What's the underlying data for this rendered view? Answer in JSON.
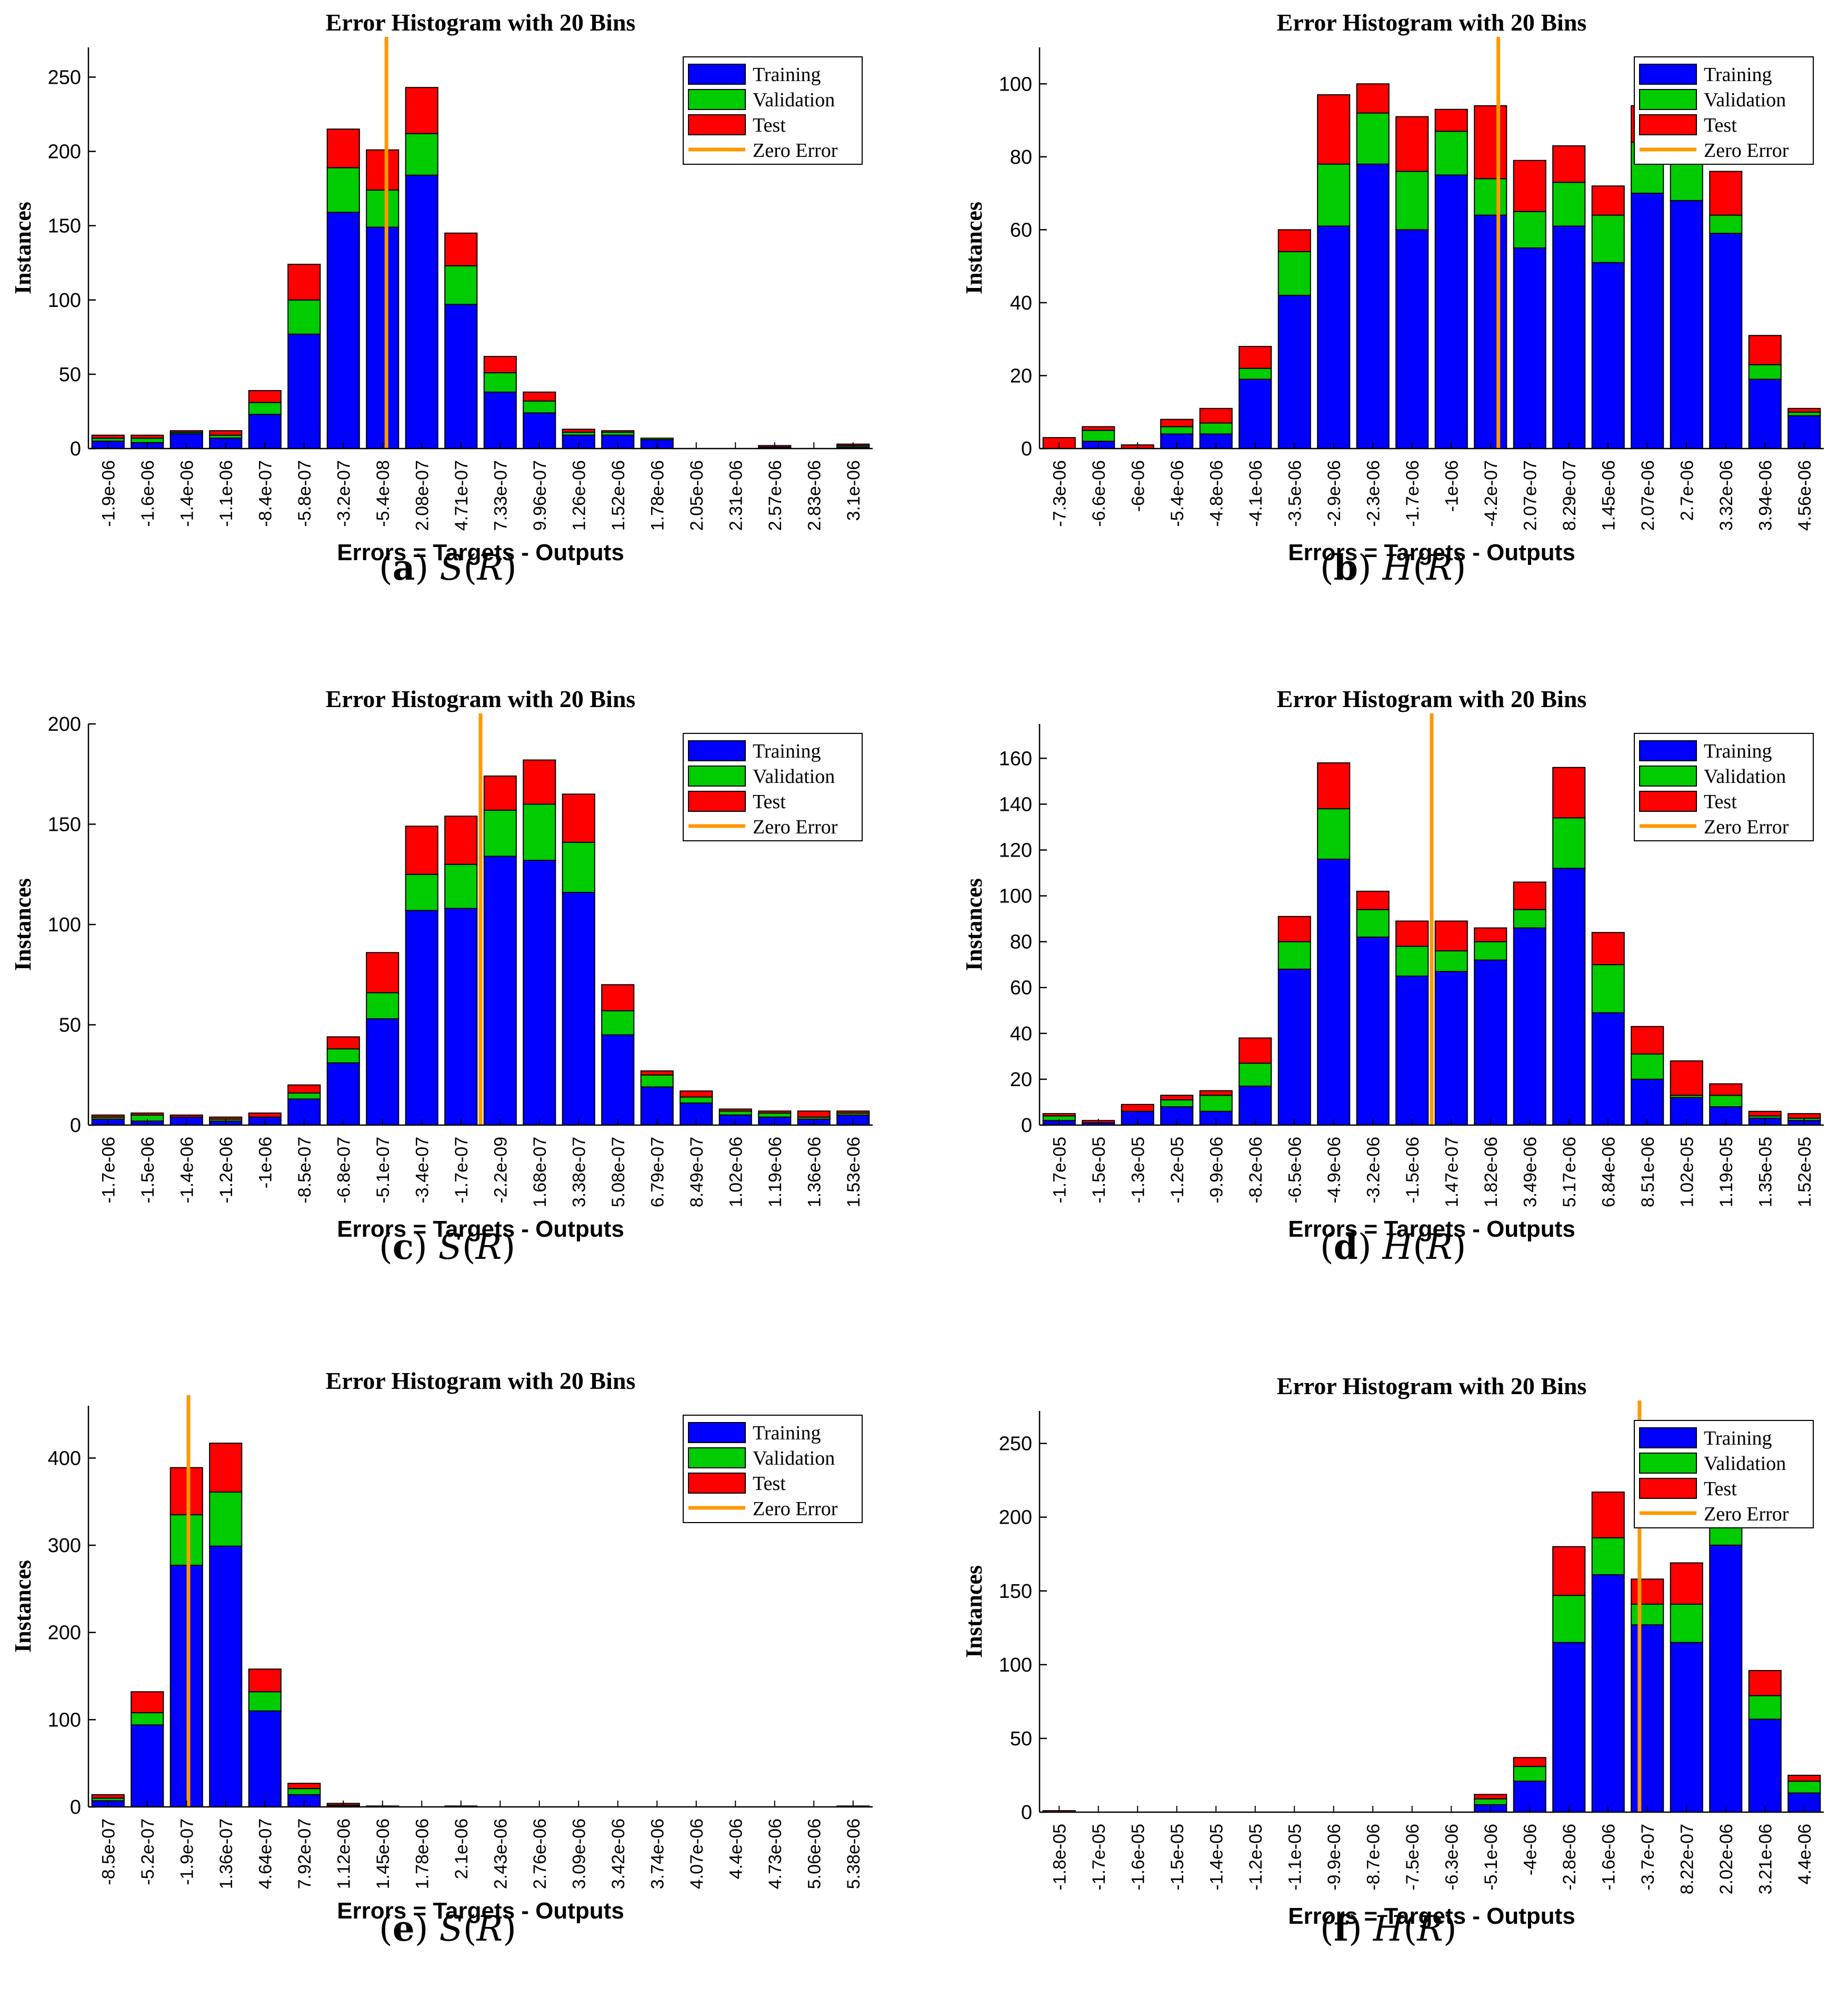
{
  "chart_data": [
    {
      "type": "bar",
      "stacked": true,
      "panel": "a",
      "title": "Error Histogram with 20 Bins",
      "xlabel": "Errors = Targets - Outputs",
      "ylabel": "Instances",
      "caption_letter": "a",
      "caption_func": "S",
      "caption_var": "R",
      "ylim": [
        0,
        270
      ],
      "yticks": [
        0,
        50,
        100,
        150,
        200,
        250
      ],
      "categories": [
        "-1.9e-06",
        "-1.6e-06",
        "-1.4e-06",
        "-1.1e-06",
        "-8.4e-07",
        "-5.8e-07",
        "-3.2e-07",
        "-5.4e-08",
        "2.08e-07",
        "4.71e-07",
        "7.33e-07",
        "9.96e-07",
        "1.26e-06",
        "1.52e-06",
        "1.78e-06",
        "2.05e-06",
        "2.31e-06",
        "2.57e-06",
        "2.83e-06",
        "3.1e-06"
      ],
      "series": [
        {
          "name": "Training",
          "color": "#0000FF",
          "values": [
            5,
            4,
            10,
            7,
            23,
            77,
            159,
            149,
            184,
            97,
            38,
            24,
            9,
            9,
            6,
            0,
            0,
            1,
            0,
            1
          ]
        },
        {
          "name": "Validation",
          "color": "#00CC00",
          "values": [
            2,
            3,
            1,
            2,
            8,
            23,
            30,
            25,
            28,
            26,
            13,
            8,
            2,
            2,
            1,
            0,
            0,
            0,
            0,
            1
          ]
        },
        {
          "name": "Test",
          "color": "#FF0000",
          "values": [
            2,
            2,
            1,
            3,
            8,
            24,
            26,
            27,
            31,
            22,
            11,
            6,
            2,
            1,
            0,
            0,
            0,
            1,
            0,
            1
          ]
        }
      ],
      "zero_error_bin": 7.6,
      "legend": [
        "Training",
        "Validation",
        "Test",
        "Zero Error"
      ],
      "legend_position": "top-right"
    },
    {
      "type": "bar",
      "stacked": true,
      "panel": "b",
      "title": "Error Histogram with 20 Bins",
      "xlabel": "Errors = Targets - Outputs",
      "ylabel": "Instances",
      "caption_letter": "b",
      "caption_func": "H",
      "caption_var": "R",
      "ylim": [
        0,
        110
      ],
      "yticks": [
        0,
        20,
        40,
        60,
        80,
        100
      ],
      "categories": [
        "-7.3e-06",
        "-6.6e-06",
        "-6e-06",
        "-5.4e-06",
        "-4.8e-06",
        "-4.1e-06",
        "-3.5e-06",
        "-2.9e-06",
        "-2.3e-06",
        "-1.7e-06",
        "-1e-06",
        "-4.2e-07",
        "2.07e-07",
        "8.29e-07",
        "1.45e-06",
        "2.07e-06",
        "2.7e-06",
        "3.32e-06",
        "3.94e-06",
        "4.56e-06"
      ],
      "series": [
        {
          "name": "Training",
          "color": "#0000FF",
          "values": [
            0,
            2,
            0,
            4,
            4,
            19,
            42,
            61,
            78,
            60,
            75,
            64,
            55,
            61,
            51,
            70,
            68,
            59,
            19,
            9
          ]
        },
        {
          "name": "Validation",
          "color": "#00CC00",
          "values": [
            0,
            3,
            0,
            2,
            3,
            3,
            12,
            17,
            14,
            16,
            12,
            10,
            10,
            12,
            13,
            14,
            16,
            5,
            4,
            1
          ]
        },
        {
          "name": "Test",
          "color": "#FF0000",
          "values": [
            3,
            1,
            1,
            2,
            4,
            6,
            6,
            19,
            8,
            15,
            6,
            20,
            14,
            10,
            8,
            10,
            10,
            12,
            8,
            1
          ]
        }
      ],
      "zero_error_bin": 11.7,
      "legend": [
        "Training",
        "Validation",
        "Test",
        "Zero Error"
      ],
      "legend_position": "top-right"
    },
    {
      "type": "bar",
      "stacked": true,
      "panel": "c",
      "title": "Error Histogram with 20 Bins",
      "xlabel": "Errors = Targets - Outputs",
      "ylabel": "Instances",
      "caption_letter": "c",
      "caption_func": "S",
      "caption_var": "R",
      "ylim": [
        0,
        200
      ],
      "yticks": [
        0,
        50,
        100,
        150,
        200
      ],
      "categories": [
        "-1.7e-06",
        "-1.5e-06",
        "-1.4e-06",
        "-1.2e-06",
        "-1e-06",
        "-8.5e-07",
        "-6.8e-07",
        "-5.1e-07",
        "-3.4e-07",
        "-1.7e-07",
        "-2.2e-09",
        "1.68e-07",
        "3.38e-07",
        "5.08e-07",
        "6.79e-07",
        "8.49e-07",
        "1.02e-06",
        "1.19e-06",
        "1.36e-06",
        "1.53e-06"
      ],
      "series": [
        {
          "name": "Training",
          "color": "#0000FF",
          "values": [
            3,
            2,
            4,
            2,
            4,
            13,
            31,
            53,
            107,
            108,
            134,
            132,
            116,
            45,
            19,
            11,
            5,
            4,
            3,
            5
          ]
        },
        {
          "name": "Validation",
          "color": "#00CC00",
          "values": [
            1,
            3,
            0,
            1,
            0,
            3,
            7,
            13,
            18,
            22,
            23,
            28,
            25,
            12,
            6,
            3,
            2,
            2,
            1,
            1
          ]
        },
        {
          "name": "Test",
          "color": "#FF0000",
          "values": [
            1,
            1,
            1,
            1,
            2,
            4,
            6,
            20,
            24,
            24,
            17,
            22,
            24,
            13,
            2,
            3,
            1,
            1,
            3,
            1
          ]
        }
      ],
      "zero_error_bin": 10.0,
      "legend": [
        "Training",
        "Validation",
        "Test",
        "Zero Error"
      ],
      "legend_position": "top-right"
    },
    {
      "type": "bar",
      "stacked": true,
      "panel": "d",
      "title": "Error Histogram with 20 Bins",
      "xlabel": "Errors = Targets - Outputs",
      "ylabel": "Instances",
      "caption_letter": "d",
      "caption_func": "H",
      "caption_var": "R",
      "ylim": [
        0,
        175
      ],
      "yticks": [
        0,
        20,
        40,
        60,
        80,
        100,
        120,
        140,
        160
      ],
      "categories": [
        "-1.7e-05",
        "-1.5e-05",
        "-1.3e-05",
        "-1.2e-05",
        "-9.9e-06",
        "-8.2e-06",
        "-6.5e-06",
        "-4.9e-06",
        "-3.2e-06",
        "-1.5e-06",
        "1.47e-07",
        "1.82e-06",
        "3.49e-06",
        "5.17e-06",
        "6.84e-06",
        "8.51e-06",
        "1.02e-05",
        "1.19e-05",
        "1.35e-05",
        "1.52e-05"
      ],
      "series": [
        {
          "name": "Training",
          "color": "#0000FF",
          "values": [
            2,
            1,
            6,
            8,
            6,
            17,
            68,
            116,
            82,
            65,
            67,
            72,
            86,
            112,
            49,
            20,
            12,
            8,
            3,
            2
          ]
        },
        {
          "name": "Validation",
          "color": "#00CC00",
          "values": [
            2,
            0,
            0,
            3,
            7,
            10,
            12,
            22,
            12,
            13,
            9,
            8,
            8,
            22,
            21,
            11,
            1,
            5,
            1,
            1
          ]
        },
        {
          "name": "Test",
          "color": "#FF0000",
          "values": [
            1,
            1,
            3,
            2,
            2,
            11,
            11,
            20,
            8,
            11,
            13,
            6,
            12,
            22,
            14,
            12,
            15,
            5,
            2,
            2
          ]
        }
      ],
      "zero_error_bin": 10.0,
      "legend": [
        "Training",
        "Validation",
        "Test",
        "Zero Error"
      ],
      "legend_position": "top-right"
    },
    {
      "type": "bar",
      "stacked": true,
      "panel": "e",
      "title": "Error Histogram with 20 Bins",
      "xlabel": "Errors = Targets - Outputs",
      "ylabel": "Instances",
      "caption_letter": "e",
      "caption_func": "S",
      "caption_var": "R",
      "ylim": [
        0,
        460
      ],
      "yticks": [
        0,
        100,
        200,
        300,
        400
      ],
      "categories": [
        "-8.5e-07",
        "-5.2e-07",
        "-1.9e-07",
        "1.36e-07",
        "4.64e-07",
        "7.92e-07",
        "1.12e-06",
        "1.45e-06",
        "1.78e-06",
        "2.1e-06",
        "2.43e-06",
        "2.76e-06",
        "3.09e-06",
        "3.42e-06",
        "3.74e-06",
        "4.07e-06",
        "4.4e-06",
        "4.73e-06",
        "5.06e-06",
        "5.38e-06"
      ],
      "series": [
        {
          "name": "Training",
          "color": "#0000FF",
          "values": [
            7,
            94,
            277,
            299,
            110,
            14,
            1,
            0,
            0,
            0,
            0,
            0,
            0,
            0,
            0,
            0,
            0,
            0,
            0,
            0
          ]
        },
        {
          "name": "Validation",
          "color": "#00CC00",
          "values": [
            3,
            14,
            58,
            62,
            22,
            7,
            1,
            0,
            0,
            0,
            0,
            0,
            0,
            0,
            0,
            0,
            0,
            0,
            0,
            0
          ]
        },
        {
          "name": "Test",
          "color": "#FF0000",
          "values": [
            4,
            24,
            54,
            56,
            26,
            6,
            2,
            1,
            0,
            1,
            0,
            0,
            0,
            0,
            0,
            0,
            0,
            0,
            0,
            1
          ]
        }
      ],
      "zero_error_bin": 2.55,
      "legend": [
        "Training",
        "Validation",
        "Test",
        "Zero Error"
      ],
      "legend_position": "top-right"
    },
    {
      "type": "bar",
      "stacked": true,
      "panel": "f",
      "title": "Error Histogram with 20 Bins",
      "xlabel": "Errors = Targets - Outputs",
      "ylabel": "Instances",
      "caption_letter": "f",
      "caption_func": "H",
      "caption_var": "R",
      "ylim": [
        0,
        272
      ],
      "yticks": [
        0,
        50,
        100,
        150,
        200,
        250
      ],
      "categories": [
        "-1.8e-05",
        "-1.7e-05",
        "-1.6e-05",
        "-1.5e-05",
        "-1.4e-05",
        "-1.2e-05",
        "-1.1e-05",
        "-9.9e-06",
        "-8.7e-06",
        "-7.5e-06",
        "-6.3e-06",
        "-5.1e-06",
        "-4e-06",
        "-2.8e-06",
        "-1.6e-06",
        "-3.7e-07",
        "8.22e-07",
        "2.02e-06",
        "3.21e-06",
        "4.4e-06"
      ],
      "series": [
        {
          "name": "Training",
          "color": "#0000FF",
          "values": [
            0,
            0,
            0,
            0,
            0,
            0,
            0,
            0,
            0,
            0,
            0,
            5,
            21,
            115,
            161,
            127,
            115,
            181,
            63,
            13
          ]
        },
        {
          "name": "Validation",
          "color": "#00CC00",
          "values": [
            0,
            0,
            0,
            0,
            0,
            0,
            0,
            0,
            0,
            0,
            0,
            4,
            10,
            32,
            25,
            14,
            26,
            30,
            16,
            8
          ]
        },
        {
          "name": "Test",
          "color": "#FF0000",
          "values": [
            1,
            0,
            0,
            0,
            0,
            0,
            0,
            0,
            0,
            0,
            0,
            3,
            6,
            33,
            31,
            17,
            28,
            22,
            17,
            4
          ]
        }
      ],
      "zero_error_bin": 15.3,
      "legend": [
        "Training",
        "Validation",
        "Test",
        "Zero Error"
      ],
      "legend_position": "top-right"
    }
  ],
  "legend_colors": {
    "Training": "#0000FF",
    "Validation": "#00CC00",
    "Test": "#FF0000",
    "Zero Error": "#FF9900"
  }
}
